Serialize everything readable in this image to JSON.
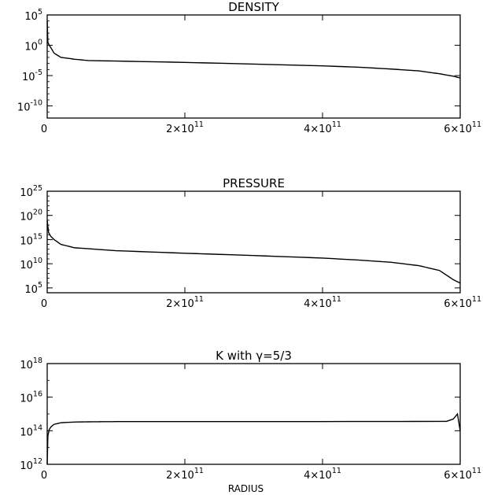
{
  "chart_data": [
    {
      "type": "line",
      "title": "DENSITY",
      "xlabel": "",
      "ylabel": "",
      "xlim": [
        0,
        600000000000
      ],
      "ylim": [
        1e-12,
        100000.0
      ],
      "yscale": "log",
      "grid": false,
      "x_ticks": [
        {
          "value": 0,
          "label": "0",
          "exp": ""
        },
        {
          "value": 200000000000,
          "label": "2×10",
          "exp": "11"
        },
        {
          "value": 400000000000,
          "label": "4×10",
          "exp": "11"
        },
        {
          "value": 600000000000,
          "label": "6×10",
          "exp": "11"
        }
      ],
      "y_ticks": [
        {
          "value": 100000.0,
          "label": "10",
          "exp": "5"
        },
        {
          "value": 1,
          "label": "10",
          "exp": "0"
        },
        {
          "value": 1e-05,
          "label": "10",
          "exp": "-5"
        },
        {
          "value": 1e-10,
          "label": "10",
          "exp": "-10"
        }
      ],
      "series": [
        {
          "x": [
            0,
            1000000000,
            3000000000,
            6000000000,
            10000000000,
            20000000000,
            40000000000,
            60000000000,
            100000000000,
            200000000000,
            300000000000,
            400000000000,
            450000000000,
            500000000000,
            540000000000,
            570000000000,
            590000000000,
            600000000000
          ],
          "y": [
            10000.0,
            3,
            1,
            0.3,
            0.05,
            0.01,
            0.005,
            0.003,
            0.0025,
            0.0015,
            0.0008,
            0.0004,
            0.00025,
            0.00012,
            6e-05,
            2e-05,
            8e-06,
            4e-06
          ]
        }
      ]
    },
    {
      "type": "line",
      "title": "PRESSURE",
      "xlabel": "",
      "ylabel": "",
      "xlim": [
        0,
        600000000000
      ],
      "ylim": [
        10000.0,
        1e+25
      ],
      "yscale": "log",
      "grid": false,
      "x_ticks": [
        {
          "value": 0,
          "label": "0",
          "exp": ""
        },
        {
          "value": 200000000000,
          "label": "2×10",
          "exp": "11"
        },
        {
          "value": 400000000000,
          "label": "4×10",
          "exp": "11"
        },
        {
          "value": 600000000000,
          "label": "6×10",
          "exp": "11"
        }
      ],
      "y_ticks": [
        {
          "value": 1e+25,
          "label": "10",
          "exp": "25"
        },
        {
          "value": 1e+20,
          "label": "10",
          "exp": "20"
        },
        {
          "value": 1000000000000000.0,
          "label": "10",
          "exp": "15"
        },
        {
          "value": 10000000000.0,
          "label": "10",
          "exp": "10"
        },
        {
          "value": 100000.0,
          "label": "10",
          "exp": "5"
        }
      ],
      "series": [
        {
          "x": [
            0,
            2000000000,
            5000000000,
            10000000000,
            20000000000,
            40000000000,
            100000000000,
            200000000000,
            300000000000,
            400000000000,
            450000000000,
            500000000000,
            540000000000,
            570000000000,
            590000000000,
            600000000000
          ],
          "y": [
            1e+19,
            3e+16,
            5000000000000000.0,
            1000000000000000.0,
            100000000000000.0,
            20000000000000.0,
            5000000000000.0,
            1500000000000.0,
            500000000000.0,
            150000000000.0,
            60000000000.0,
            20000000000.0,
            4000000000.0,
            400000000.0,
            5000000.0,
            1000000.0
          ]
        }
      ]
    },
    {
      "type": "line",
      "title": "K with γ=5/3",
      "xlabel": "RADIUS",
      "ylabel": "",
      "xlim": [
        0,
        600000000000
      ],
      "ylim": [
        1000000000000.0,
        1e+18
      ],
      "yscale": "log",
      "grid": false,
      "x_ticks": [
        {
          "value": 0,
          "label": "0",
          "exp": ""
        },
        {
          "value": 200000000000,
          "label": "2×10",
          "exp": "11"
        },
        {
          "value": 400000000000,
          "label": "4×10",
          "exp": "11"
        },
        {
          "value": 600000000000,
          "label": "6×10",
          "exp": "11"
        }
      ],
      "y_ticks": [
        {
          "value": 1e+18,
          "label": "10",
          "exp": "18"
        },
        {
          "value": 1e+16,
          "label": "10",
          "exp": "16"
        },
        {
          "value": 100000000000000.0,
          "label": "10",
          "exp": "14"
        },
        {
          "value": 1000000000000.0,
          "label": "10",
          "exp": "12"
        }
      ],
      "series": [
        {
          "x": [
            0,
            1000000000,
            3000000000,
            6000000000,
            10000000000,
            20000000000,
            40000000000,
            60000000000,
            100000000000,
            300000000000,
            580000000000,
            590000000000,
            596000000000,
            600000000000
          ],
          "y": [
            1000000000000.0,
            50000000000000.0,
            120000000000000.0,
            180000000000000.0,
            240000000000000.0,
            300000000000000.0,
            330000000000000.0,
            340000000000000.0,
            350000000000000.0,
            350000000000000.0,
            360000000000000.0,
            500000000000000.0,
            1000000000000000.0,
            100000000000000.0
          ]
        }
      ]
    }
  ]
}
